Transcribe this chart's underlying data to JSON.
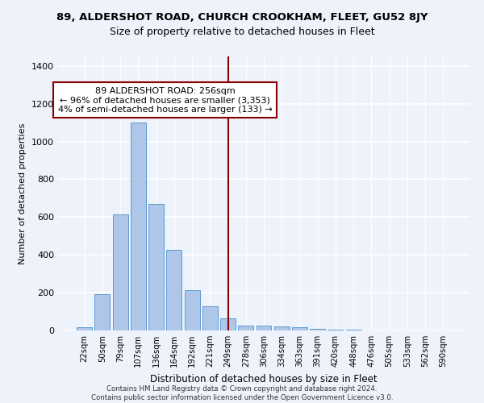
{
  "title": "89, ALDERSHOT ROAD, CHURCH CROOKHAM, FLEET, GU52 8JY",
  "subtitle": "Size of property relative to detached houses in Fleet",
  "xlabel": "Distribution of detached houses by size in Fleet",
  "ylabel": "Number of detached properties",
  "categories": [
    "22sqm",
    "50sqm",
    "79sqm",
    "107sqm",
    "136sqm",
    "164sqm",
    "192sqm",
    "221sqm",
    "249sqm",
    "278sqm",
    "306sqm",
    "334sqm",
    "363sqm",
    "391sqm",
    "420sqm",
    "448sqm",
    "476sqm",
    "505sqm",
    "533sqm",
    "562sqm",
    "590sqm"
  ],
  "values": [
    15,
    190,
    615,
    1100,
    670,
    425,
    215,
    130,
    65,
    25,
    25,
    20,
    15,
    10,
    5,
    3,
    2,
    1,
    1,
    1,
    1
  ],
  "bar_color": "#aec6e8",
  "bar_edge_color": "#5b9bd5",
  "marker_bin_index": 8,
  "vline_color": "#8b0000",
  "annotation_text": "89 ALDERSHOT ROAD: 256sqm\n← 96% of detached houses are smaller (3,353)\n4% of semi-detached houses are larger (133) →",
  "annotation_box_color": "#ffffff",
  "annotation_box_edge": "#8b0000",
  "ylim": [
    0,
    1450
  ],
  "yticks": [
    0,
    200,
    400,
    600,
    800,
    1000,
    1200,
    1400
  ],
  "footer_line1": "Contains HM Land Registry data © Crown copyright and database right 2024.",
  "footer_line2": "Contains public sector information licensed under the Open Government Licence v3.0.",
  "bg_color": "#eef2fb",
  "grid_color": "#ffffff",
  "title_fontsize": 9.5,
  "subtitle_fontsize": 9,
  "annotation_fontsize": 8
}
